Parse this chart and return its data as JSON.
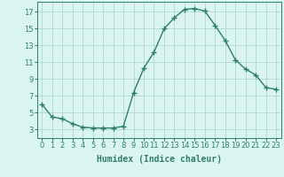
{
  "x": [
    0,
    1,
    2,
    3,
    4,
    5,
    6,
    7,
    8,
    9,
    10,
    11,
    12,
    13,
    14,
    15,
    16,
    17,
    18,
    19,
    20,
    21,
    22,
    23
  ],
  "y": [
    6.0,
    4.5,
    4.3,
    3.7,
    3.3,
    3.2,
    3.2,
    3.2,
    3.4,
    7.4,
    10.3,
    12.2,
    15.0,
    16.3,
    17.3,
    17.4,
    17.1,
    15.4,
    13.6,
    11.3,
    10.2,
    9.5,
    8.0,
    7.8
  ],
  "line_color": "#2e7d6e",
  "marker": "+",
  "marker_size": 4,
  "bg_color": "#daf5f0",
  "grid_color": "#b0d8d0",
  "xlabel": "Humidex (Indice chaleur)",
  "xlabel_fontsize": 7,
  "xlim": [
    -0.5,
    23.5
  ],
  "ylim": [
    2.0,
    18.2
  ],
  "yticks": [
    3,
    5,
    7,
    9,
    11,
    13,
    15,
    17
  ],
  "xticks": [
    0,
    1,
    2,
    3,
    4,
    5,
    6,
    7,
    8,
    9,
    10,
    11,
    12,
    13,
    14,
    15,
    16,
    17,
    18,
    19,
    20,
    21,
    22,
    23
  ],
  "tick_fontsize": 6,
  "line_width": 1.0,
  "marker_edge_width": 1.0
}
